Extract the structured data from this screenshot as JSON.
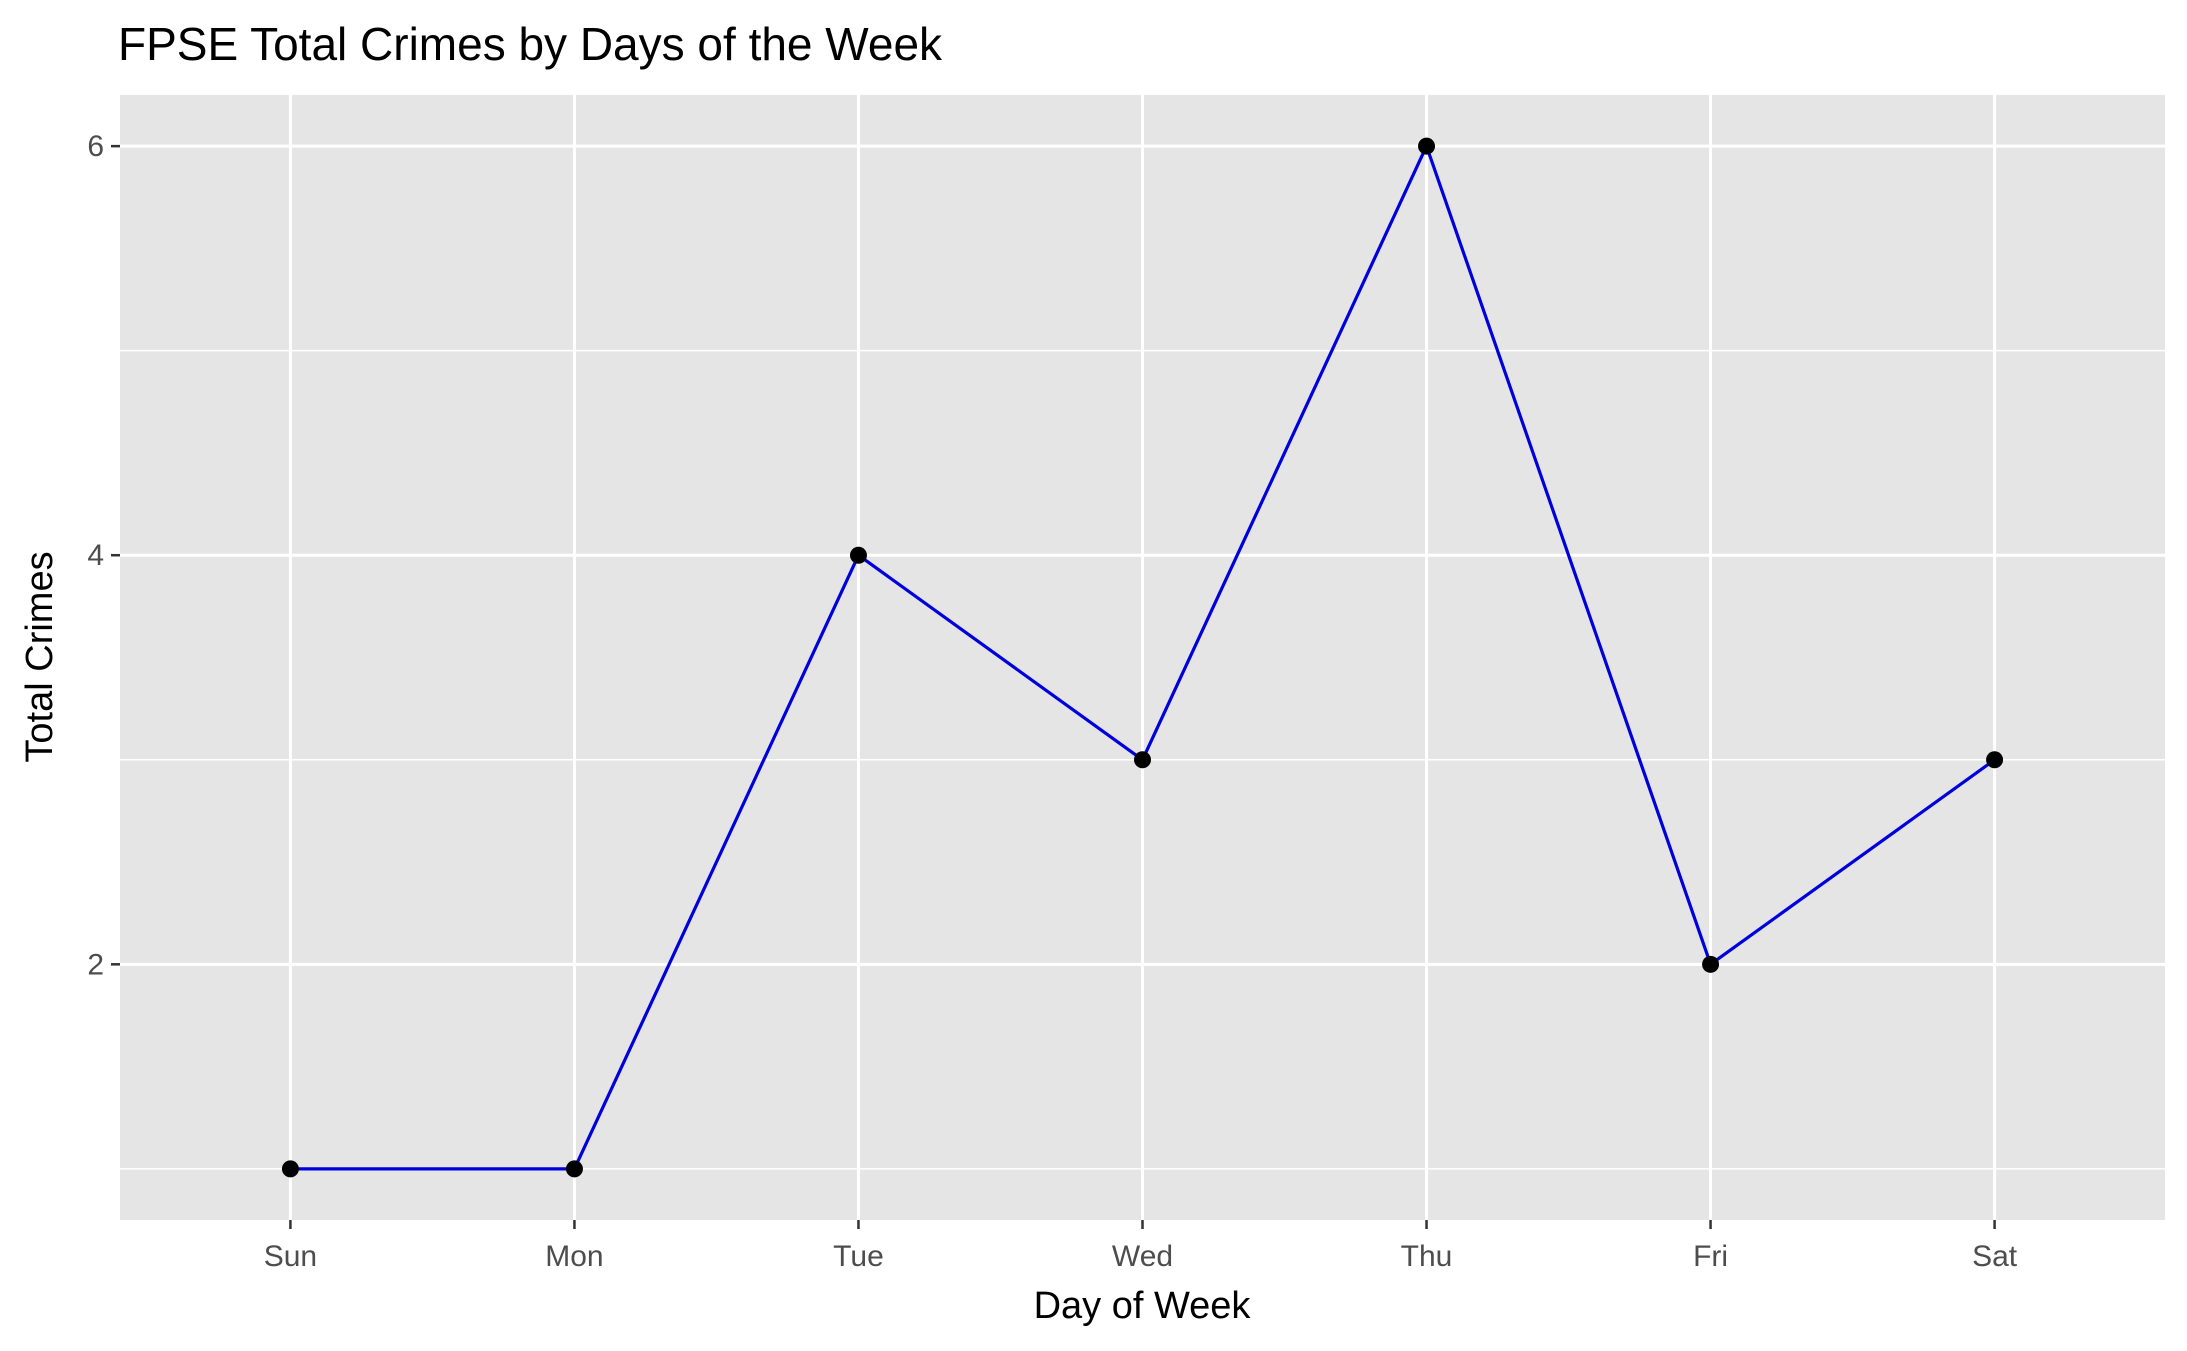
{
  "chart_data": {
    "type": "line",
    "title": "FPSE Total Crimes by Days of the Week",
    "xlabel": "Day of Week",
    "ylabel": "Total Crimes",
    "categories": [
      "Sun",
      "Mon",
      "Tue",
      "Wed",
      "Thu",
      "Fri",
      "Sat"
    ],
    "series": [
      {
        "values": [
          1,
          1,
          4,
          3,
          6,
          2,
          3
        ]
      }
    ],
    "ylim": [
      0.75,
      6.25
    ],
    "y_major_ticks": [
      2,
      4,
      6
    ],
    "y_minor_ticks": [
      1,
      3,
      5
    ],
    "grid": true,
    "legend": "none",
    "colors": {
      "line": "#0000dd",
      "point": "#000000",
      "panel_background": "#e5e5e5",
      "grid": "#ffffff",
      "tick_text": "#4d4d4d"
    }
  }
}
